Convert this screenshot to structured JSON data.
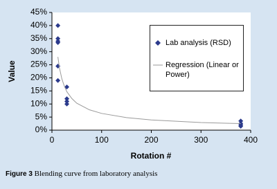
{
  "chart_data": {
    "type": "scatter",
    "xlabel": "Rotation #",
    "ylabel": "Value",
    "xlim": [
      0,
      400
    ],
    "xticks": [
      0,
      100,
      200,
      300,
      400
    ],
    "ylim": [
      0,
      45
    ],
    "yticks": [
      {
        "value": 0,
        "label": "0%"
      },
      {
        "value": 5,
        "label": "5%"
      },
      {
        "value": 10,
        "label": "10%"
      },
      {
        "value": 15,
        "label": "15%"
      },
      {
        "value": 20,
        "label": "20%"
      },
      {
        "value": 25,
        "label": "25%"
      },
      {
        "value": 30,
        "label": "30%"
      },
      {
        "value": 35,
        "label": "35%"
      },
      {
        "value": 40,
        "label": "40%"
      },
      {
        "value": 45,
        "label": "45%"
      }
    ],
    "grid": false,
    "series": [
      {
        "name": "Lab analysis (RSD)",
        "color": "#2b3a8c",
        "marker": "diamond",
        "x": [
          12,
          12,
          12,
          12,
          12,
          12,
          30,
          30,
          30,
          30,
          380,
          380,
          380,
          380
        ],
        "values": [
          40,
          35,
          34,
          33.5,
          24.5,
          19,
          16.5,
          12,
          11,
          10,
          3.5,
          2.5,
          2,
          1.5
        ]
      },
      {
        "name": "Regression (Linear or Power)",
        "color": "#9a9a9a",
        "marker": "line",
        "x": [
          12,
          15,
          20,
          25,
          30,
          40,
          50,
          75,
          100,
          150,
          200,
          250,
          300,
          350,
          380
        ],
        "values": [
          28,
          23.9,
          19.6,
          16.8,
          14.7,
          12.1,
          10.3,
          7.8,
          6.4,
          4.8,
          3.9,
          3.4,
          2.9,
          2.65,
          2.5
        ]
      }
    ]
  },
  "caption": {
    "label": "Figure 3",
    "text": "Blending curve from laboratory analysis"
  }
}
